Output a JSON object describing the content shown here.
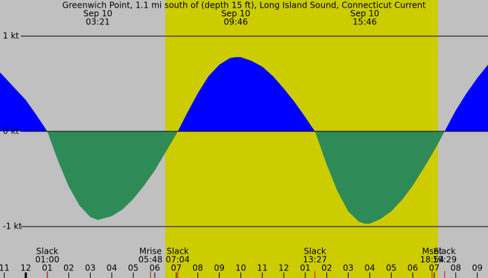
{
  "chart_data": {
    "type": "area",
    "title": "Greenwich Point, 1.1 mi south of (depth 15 ft), Long Island Sound, Connecticut Current",
    "x": [
      -1.2,
      -0.5,
      0,
      0.5,
      1.0,
      1.5,
      2.0,
      2.5,
      3.0,
      3.35,
      4.0,
      4.5,
      5.0,
      5.5,
      6.0,
      6.5,
      7.07,
      7.5,
      8.0,
      8.5,
      9.0,
      9.5,
      9.77,
      10.0,
      10.5,
      11.0,
      11.5,
      12.0,
      12.5,
      13.0,
      13.45,
      13.5,
      14.0,
      14.5,
      15.0,
      15.5,
      15.77,
      16.0,
      16.5,
      17.0,
      17.5,
      18.0,
      18.5,
      19.0,
      19.48,
      20.0,
      20.5,
      21.0,
      21.5
    ],
    "values": [
      0.62,
      0.45,
      0.33,
      0.17,
      0,
      -0.31,
      -0.58,
      -0.78,
      -0.9,
      -0.93,
      -0.89,
      -0.82,
      -0.71,
      -0.57,
      -0.41,
      -0.22,
      0,
      0.19,
      0.4,
      0.58,
      0.7,
      0.77,
      0.78,
      0.78,
      0.74,
      0.68,
      0.58,
      0.45,
      0.31,
      0.15,
      0,
      -0.03,
      -0.35,
      -0.63,
      -0.84,
      -0.95,
      -0.97,
      -0.97,
      -0.92,
      -0.84,
      -0.72,
      -0.57,
      -0.39,
      -0.2,
      0,
      0.22,
      0.4,
      0.56,
      0.7
    ],
    "flood_color": "#0000ff",
    "ebb_color": "#2e8b57",
    "background_color": "#c0c0c0",
    "daylight_color": "#cccc00",
    "daylight": [
      6.49,
      19.17
    ],
    "xlim": [
      -1.2,
      21.5
    ],
    "ylim": [
      -1.54,
      1.38
    ],
    "yticks": [
      {
        "value": 1,
        "label": "1 kt"
      },
      {
        "value": 0,
        "label": "0 kt"
      },
      {
        "value": -1,
        "label": "-1 kt"
      }
    ],
    "xticks": [
      {
        "value": -1,
        "label": "11"
      },
      {
        "value": 0,
        "label": "12"
      },
      {
        "value": 1,
        "label": "01"
      },
      {
        "value": 2,
        "label": "02"
      },
      {
        "value": 3,
        "label": "03"
      },
      {
        "value": 4,
        "label": "04"
      },
      {
        "value": 5,
        "label": "05"
      },
      {
        "value": 6,
        "label": "06"
      },
      {
        "value": 7,
        "label": "07"
      },
      {
        "value": 8,
        "label": "08"
      },
      {
        "value": 9,
        "label": "09"
      },
      {
        "value": 10,
        "label": "10"
      },
      {
        "value": 11,
        "label": "11"
      },
      {
        "value": 12,
        "label": "12"
      },
      {
        "value": 13,
        "label": "01"
      },
      {
        "value": 14,
        "label": "02"
      },
      {
        "value": 15,
        "label": "03"
      },
      {
        "value": 16,
        "label": "04"
      },
      {
        "value": 17,
        "label": "05"
      },
      {
        "value": 18,
        "label": "06"
      },
      {
        "value": 19,
        "label": "07"
      },
      {
        "value": 20,
        "label": "08"
      },
      {
        "value": 21,
        "label": "09"
      }
    ],
    "peak_events": [
      {
        "date": "Sep 10",
        "time": "03:21"
      },
      {
        "date": "Sep 10",
        "time": "09:46"
      },
      {
        "date": "Sep 10",
        "time": "15:46"
      }
    ],
    "events": [
      {
        "label": "Slack",
        "time": "01:00"
      },
      {
        "label": "Mrise",
        "time": "05:48"
      },
      {
        "label": "Slack",
        "time": "07:04"
      },
      {
        "label": "Slack",
        "time": "13:27"
      },
      {
        "label": "Mset",
        "time": "18:54"
      },
      {
        "label": "Slack",
        "time": "19:29"
      }
    ]
  }
}
